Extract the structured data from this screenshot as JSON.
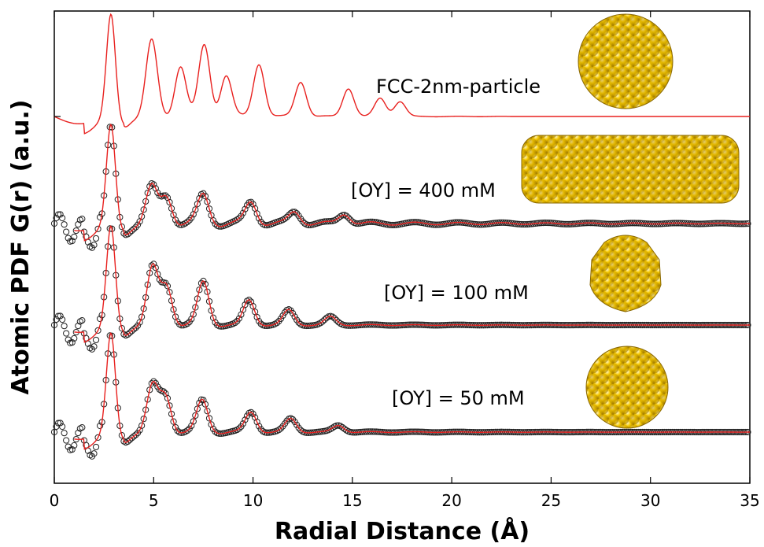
{
  "chart_data": {
    "type": "line",
    "xlabel": "Radial Distance (Å)",
    "ylabel": "Atomic PDF G(r) (a.u.)",
    "xlim": [
      0,
      35
    ],
    "x_ticks": [
      "0",
      "5",
      "10",
      "15",
      "20",
      "25",
      "30",
      "35"
    ],
    "y_ticks_labeled": false,
    "grid": false,
    "legend": "none",
    "colors": {
      "fit_line": "#e8201e",
      "experiment_marker": "#222222",
      "particle": "#f2c200"
    },
    "series": [
      {
        "name": "FCC-2nm-particle",
        "kind": "model",
        "baseline": 0,
        "decay": 6,
        "cutoff": 23,
        "peaks": [
          [
            2.85,
            3.1
          ],
          [
            4.9,
            2.25
          ],
          [
            6.35,
            1.55
          ],
          [
            7.55,
            2.15
          ],
          [
            8.65,
            1.25
          ],
          [
            10.3,
            1.6
          ],
          [
            12.4,
            1.05
          ],
          [
            14.8,
            0.85
          ],
          [
            16.4,
            0.55
          ],
          [
            17.4,
            0.45
          ]
        ],
        "molecules_icon": "fcc-sphere-icon"
      },
      {
        "name": "[OY] = 400 mM",
        "kind": "experiment+fit",
        "baseline": 0,
        "decay": 11,
        "cutoff": 35,
        "peaks": [
          [
            2.85,
            3.0
          ],
          [
            4.9,
            1.05
          ],
          [
            5.65,
            0.85
          ],
          [
            7.5,
            0.85
          ],
          [
            9.9,
            0.65
          ],
          [
            12.1,
            0.35
          ],
          [
            14.6,
            0.3
          ]
        ],
        "molecules_icon": "nanorod-icon"
      },
      {
        "name": "[OY] = 100 mM",
        "kind": "experiment+fit",
        "baseline": 0,
        "decay": 6,
        "cutoff": 35,
        "peaks": [
          [
            2.85,
            3.0
          ],
          [
            4.95,
            1.7
          ],
          [
            5.65,
            1.2
          ],
          [
            7.5,
            1.3
          ],
          [
            9.8,
            0.75
          ],
          [
            11.8,
            0.45
          ],
          [
            13.9,
            0.25
          ]
        ],
        "molecules_icon": "truncated-sphere-icon"
      },
      {
        "name": "[OY] = 50 mM",
        "kind": "experiment+fit",
        "baseline": 0,
        "decay": 6,
        "cutoff": 35,
        "peaks": [
          [
            2.85,
            3.0
          ],
          [
            4.95,
            1.35
          ],
          [
            5.6,
            1.1
          ],
          [
            7.45,
            0.95
          ],
          [
            9.9,
            0.6
          ],
          [
            11.9,
            0.4
          ],
          [
            14.3,
            0.2
          ]
        ],
        "molecules_icon": "sphere-icon"
      }
    ]
  }
}
